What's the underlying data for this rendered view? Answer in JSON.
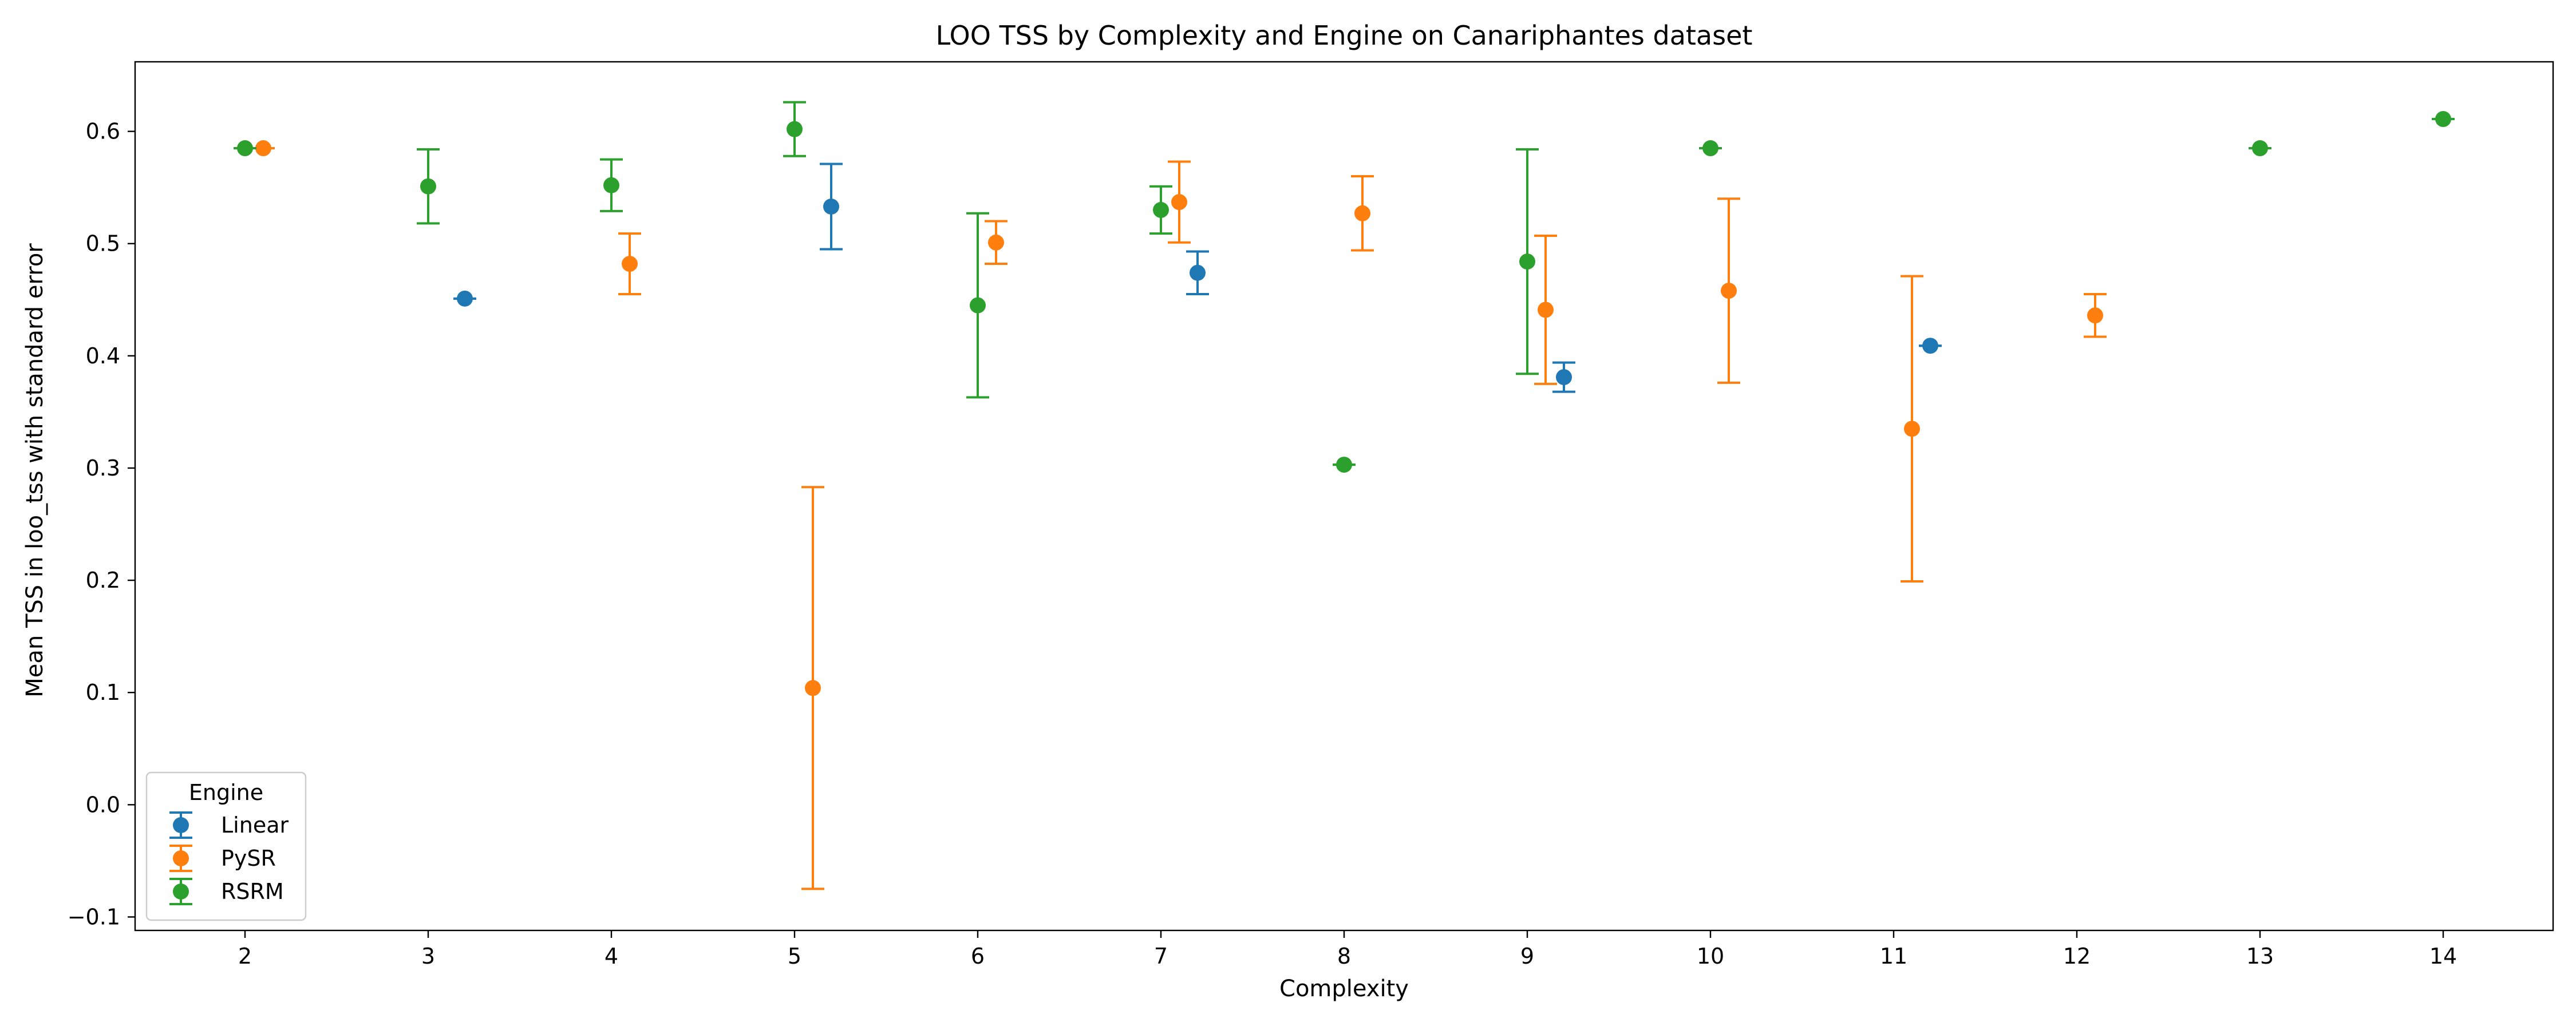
{
  "chart_data": {
    "type": "scatter",
    "title": "LOO TSS by Complexity and Engine on Canariphantes dataset",
    "xlabel": "Complexity",
    "ylabel": "Mean TSS in loo_tss with standard error",
    "xticks": [
      2,
      3,
      4,
      5,
      6,
      7,
      8,
      9,
      10,
      11,
      12,
      13,
      14
    ],
    "yticks": [
      -0.1,
      0.0,
      0.1,
      0.2,
      0.3,
      0.4,
      0.5,
      0.6
    ],
    "ytick_labels": [
      "−0.1",
      "0.0",
      "0.1",
      "0.2",
      "0.3",
      "0.4",
      "0.5",
      "0.6"
    ],
    "xlim": [
      1.4,
      14.6
    ],
    "ylim": [
      -0.112,
      0.662
    ],
    "grid": false,
    "legend": {
      "title": "Engine",
      "placement": "lower-left"
    },
    "series": [
      {
        "name": "Linear",
        "color": "#1f77b4",
        "offset": 0.2,
        "points": [
          {
            "x": 3,
            "y": 0.451,
            "err": 0.0
          },
          {
            "x": 5,
            "y": 0.533,
            "err": 0.038
          },
          {
            "x": 7,
            "y": 0.474,
            "err": 0.019
          },
          {
            "x": 9,
            "y": 0.381,
            "err": 0.013
          },
          {
            "x": 11,
            "y": 0.409,
            "err": 0.0
          }
        ]
      },
      {
        "name": "PySR",
        "color": "#ff7f0e",
        "offset": 0.1,
        "points": [
          {
            "x": 2,
            "y": 0.585,
            "err": 0.0
          },
          {
            "x": 4,
            "y": 0.482,
            "err": 0.027
          },
          {
            "x": 5,
            "y": 0.104,
            "err": 0.179
          },
          {
            "x": 6,
            "y": 0.501,
            "err": 0.019
          },
          {
            "x": 7,
            "y": 0.537,
            "err": 0.036
          },
          {
            "x": 8,
            "y": 0.527,
            "err": 0.033
          },
          {
            "x": 9,
            "y": 0.441,
            "err": 0.066
          },
          {
            "x": 10,
            "y": 0.458,
            "err": 0.082
          },
          {
            "x": 11,
            "y": 0.335,
            "err": 0.136
          },
          {
            "x": 12,
            "y": 0.436,
            "err": 0.019
          }
        ]
      },
      {
        "name": "RSRM",
        "color": "#2ca02c",
        "offset": 0.0,
        "points": [
          {
            "x": 2,
            "y": 0.585,
            "err": 0.0
          },
          {
            "x": 3,
            "y": 0.551,
            "err": 0.033
          },
          {
            "x": 4,
            "y": 0.552,
            "err": 0.023
          },
          {
            "x": 5,
            "y": 0.602,
            "err": 0.024
          },
          {
            "x": 6,
            "y": 0.445,
            "err": 0.082
          },
          {
            "x": 7,
            "y": 0.53,
            "err": 0.021
          },
          {
            "x": 8,
            "y": 0.303,
            "err": 0.0
          },
          {
            "x": 9,
            "y": 0.484,
            "err": 0.1
          },
          {
            "x": 10,
            "y": 0.585,
            "err": 0.0
          },
          {
            "x": 13,
            "y": 0.585,
            "err": 0.0
          },
          {
            "x": 14,
            "y": 0.611,
            "err": 0.0
          }
        ]
      }
    ]
  }
}
